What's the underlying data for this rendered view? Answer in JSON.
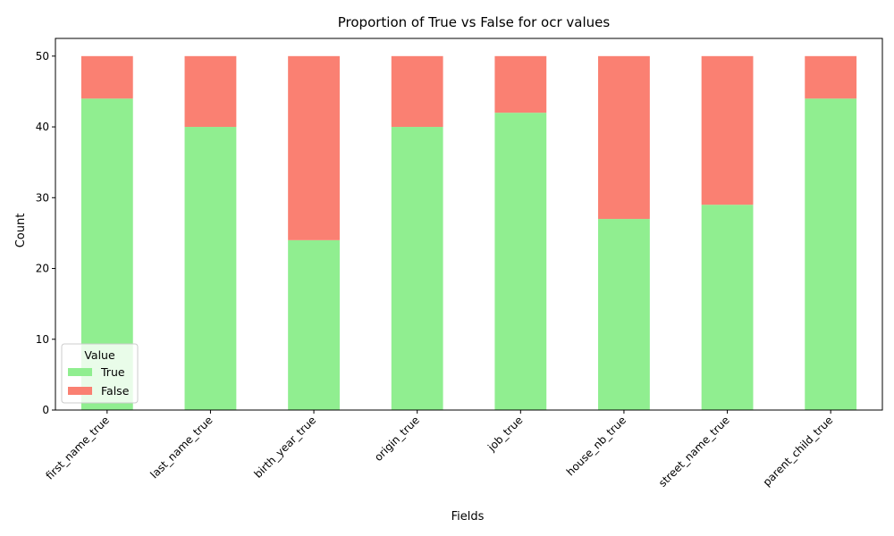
{
  "chart_data": {
    "type": "bar",
    "stacked": true,
    "title": "Proportion of True vs False for ocr values",
    "xlabel": "Fields",
    "ylabel": "Count",
    "categories": [
      "first_name_true",
      "last_name_true",
      "birth_year_true",
      "origin_true",
      "job_true",
      "house_nb_true",
      "street_name_true",
      "parent_child_true"
    ],
    "series": [
      {
        "name": "True",
        "color": "#90ee90",
        "values": [
          44,
          40,
          24,
          40,
          42,
          27,
          29,
          44
        ]
      },
      {
        "name": "False",
        "color": "#fa8072",
        "values": [
          6,
          10,
          26,
          10,
          8,
          23,
          21,
          6
        ]
      }
    ],
    "ylim": [
      0,
      52.5
    ],
    "yticks": [
      0,
      10,
      20,
      30,
      40,
      50
    ],
    "grid": false,
    "legend": {
      "title": "Value",
      "placement": "lower-left"
    }
  }
}
